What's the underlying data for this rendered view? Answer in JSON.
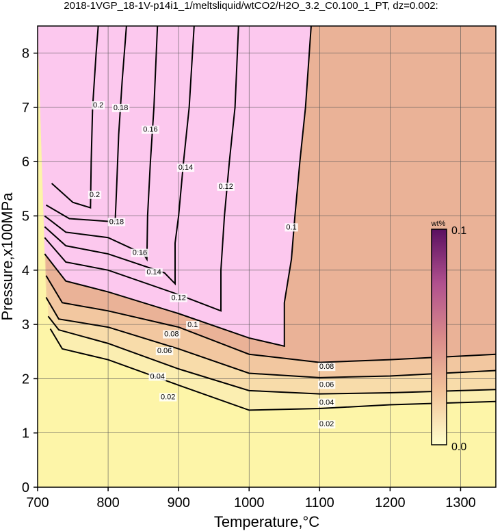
{
  "chart_data": {
    "type": "contour",
    "title": "2018-1VGP_18-1V-p14i1_1/meltsliquid/wtCO2/H2O_3.2_C0.100_1_PT, dz=0.002:",
    "xlabel": "Temperature,°C",
    "ylabel": "Pressure,x100MPa",
    "xlim": [
      700,
      1350
    ],
    "ylim": [
      0,
      8.5
    ],
    "xticks": [
      "700",
      "800",
      "900",
      "1000",
      "1100",
      "1200",
      "1300"
    ],
    "yticks": [
      "0",
      "1",
      "2",
      "3",
      "4",
      "5",
      "6",
      "7",
      "8"
    ],
    "grid": true,
    "colorbar": {
      "unit": "wt%",
      "min_label": "0.0",
      "max_label": "0.1",
      "min": 0.0,
      "max": 0.1,
      "colors": [
        "#ffffcc",
        "#f2c29a",
        "#d98a8a",
        "#b0508e",
        "#5a1060"
      ]
    },
    "saturated_color": "#fcc8ee",
    "low_fill_color": "#fdf5a8",
    "contour_levels_labeled": [
      {
        "label": "0.02",
        "points": [
          [
            718,
            2.92
          ],
          [
            735,
            2.55
          ],
          [
            800,
            2.35
          ],
          [
            900,
            1.88
          ],
          [
            1000,
            1.42
          ],
          [
            1100,
            1.45
          ],
          [
            1200,
            1.52
          ],
          [
            1350,
            1.58
          ]
        ],
        "labels": [
          [
            885,
            1.62
          ],
          [
            1110,
            1.12
          ]
        ]
      },
      {
        "label": "0.04",
        "points": [
          [
            715,
            3.15
          ],
          [
            730,
            2.9
          ],
          [
            800,
            2.65
          ],
          [
            900,
            2.18
          ],
          [
            1000,
            1.78
          ],
          [
            1100,
            1.72
          ],
          [
            1200,
            1.74
          ],
          [
            1350,
            1.8
          ]
        ],
        "labels": [
          [
            870,
            2.0
          ],
          [
            1110,
            1.52
          ]
        ]
      },
      {
        "label": "0.06",
        "points": [
          [
            712,
            3.5
          ],
          [
            730,
            3.1
          ],
          [
            800,
            2.95
          ],
          [
            900,
            2.55
          ],
          [
            1000,
            2.1
          ],
          [
            1100,
            2.02
          ],
          [
            1200,
            2.05
          ],
          [
            1350,
            2.15
          ]
        ],
        "labels": [
          [
            880,
            2.47
          ],
          [
            1110,
            1.85
          ]
        ]
      },
      {
        "label": "0.08",
        "points": [
          [
            712,
            3.9
          ],
          [
            735,
            3.4
          ],
          [
            800,
            3.25
          ],
          [
            900,
            2.95
          ],
          [
            1000,
            2.45
          ],
          [
            1100,
            2.3
          ],
          [
            1200,
            2.35
          ],
          [
            1350,
            2.45
          ]
        ],
        "labels": [
          [
            890,
            2.78
          ],
          [
            1110,
            2.18
          ]
        ]
      },
      {
        "label": "0.1",
        "points": [
          [
            710,
            4.3
          ],
          [
            740,
            3.8
          ],
          [
            800,
            3.6
          ],
          [
            900,
            3.2
          ],
          [
            1000,
            2.75
          ],
          [
            1050,
            2.6
          ],
          [
            1050,
            3.4
          ],
          [
            1060,
            4.2
          ],
          [
            1065,
            5.0
          ],
          [
            1072,
            6.0
          ],
          [
            1080,
            7.0
          ],
          [
            1088,
            8.5
          ]
        ],
        "labels": [
          [
            920,
            2.95
          ],
          [
            1060,
            4.75
          ]
        ]
      },
      {
        "label": "0.12",
        "points": [
          [
            710,
            4.6
          ],
          [
            740,
            4.15
          ],
          [
            800,
            4.0
          ],
          [
            900,
            3.55
          ],
          [
            960,
            3.25
          ],
          [
            960,
            4.0
          ],
          [
            965,
            5.0
          ],
          [
            972,
            6.0
          ],
          [
            980,
            7.0
          ],
          [
            985,
            8.5
          ]
        ],
        "labels": [
          [
            900,
            3.45
          ],
          [
            967,
            5.5
          ]
        ]
      },
      {
        "label": "0.14",
        "points": [
          [
            710,
            4.8
          ],
          [
            740,
            4.45
          ],
          [
            800,
            4.3
          ],
          [
            880,
            3.95
          ],
          [
            895,
            3.75
          ],
          [
            895,
            4.5
          ],
          [
            900,
            5.0
          ],
          [
            907,
            6.0
          ],
          [
            915,
            7.0
          ],
          [
            922,
            8.5
          ]
        ],
        "labels": [
          [
            865,
            3.92
          ],
          [
            910,
            5.85
          ]
        ]
      },
      {
        "label": "0.16",
        "points": [
          [
            710,
            5.0
          ],
          [
            740,
            4.7
          ],
          [
            800,
            4.6
          ],
          [
            850,
            4.3
          ],
          [
            855,
            4.2
          ],
          [
            856,
            5.0
          ],
          [
            860,
            6.0
          ],
          [
            865,
            7.0
          ],
          [
            870,
            8.5
          ]
        ],
        "labels": [
          [
            845,
            4.28
          ],
          [
            860,
            6.55
          ]
        ]
      },
      {
        "label": "0.18",
        "points": [
          [
            712,
            5.2
          ],
          [
            745,
            4.95
          ],
          [
            800,
            4.9
          ],
          [
            810,
            4.9
          ],
          [
            812,
            5.5
          ],
          [
            815,
            6.5
          ],
          [
            820,
            7.5
          ],
          [
            826,
            8.5
          ]
        ],
        "labels": [
          [
            812,
            4.85
          ],
          [
            818,
            6.95
          ]
        ]
      },
      {
        "label": "0.2",
        "points": [
          [
            720,
            5.6
          ],
          [
            750,
            5.25
          ],
          [
            775,
            5.15
          ],
          [
            776,
            6.0
          ],
          [
            778,
            7.0
          ],
          [
            783,
            8.0
          ],
          [
            786,
            8.5
          ]
        ],
        "labels": [
          [
            781,
            5.35
          ],
          [
            786,
            7.0
          ]
        ]
      }
    ]
  }
}
